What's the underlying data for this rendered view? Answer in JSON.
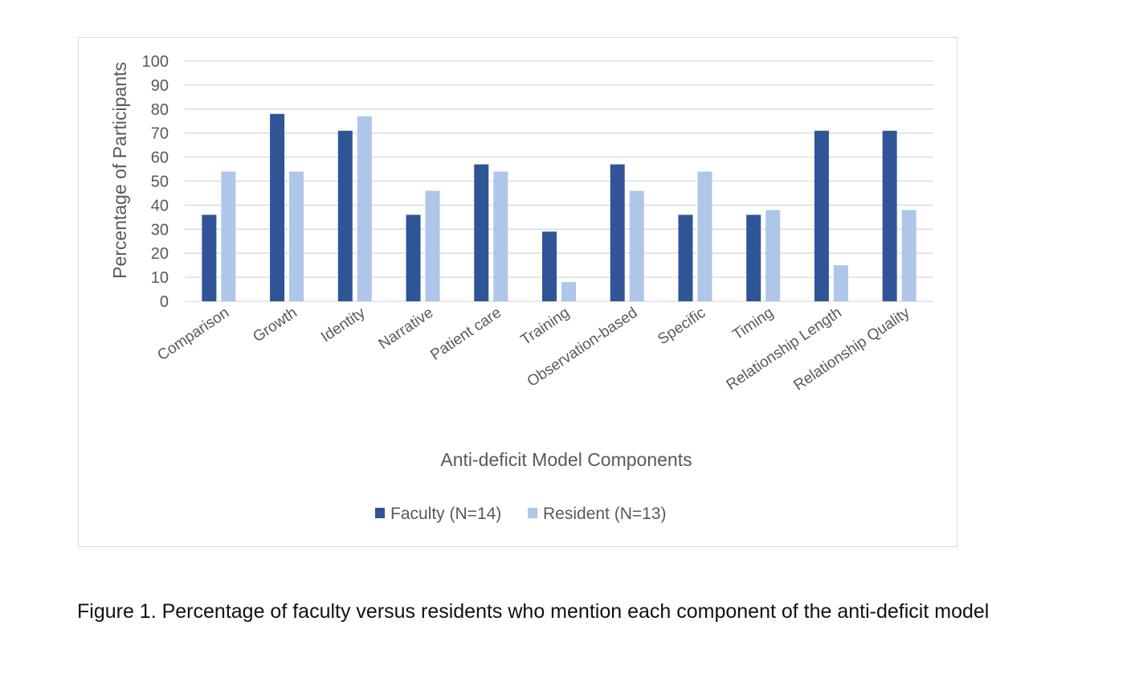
{
  "chart_data": {
    "type": "bar",
    "categories": [
      "Comparison",
      "Growth",
      "Identity",
      "Narrative",
      "Patient care",
      "Training",
      "Observation-based",
      "Specific",
      "Timing",
      "Relationship Length",
      "Relationship Quality"
    ],
    "series": [
      {
        "name": "Faculty (N=14)",
        "color": "#2f5597",
        "values": [
          36,
          78,
          71,
          36,
          57,
          29,
          57,
          36,
          36,
          71,
          71
        ]
      },
      {
        "name": "Resident (N=13)",
        "color": "#aec6e8",
        "values": [
          54,
          54,
          77,
          46,
          54,
          8,
          46,
          54,
          38,
          15,
          38
        ]
      }
    ],
    "yticks": [
      "0",
      "10",
      "20",
      "30",
      "40",
      "50",
      "60",
      "70",
      "80",
      "90",
      "100"
    ],
    "ylim": [
      0,
      100
    ],
    "xlabel": "Anti-deficit Model Components",
    "ylabel": "Percentage of Participants",
    "grid": true,
    "legend_position": "bottom"
  },
  "caption": "Figure 1. Percentage of faculty versus residents who mention each component of the anti-deficit model"
}
